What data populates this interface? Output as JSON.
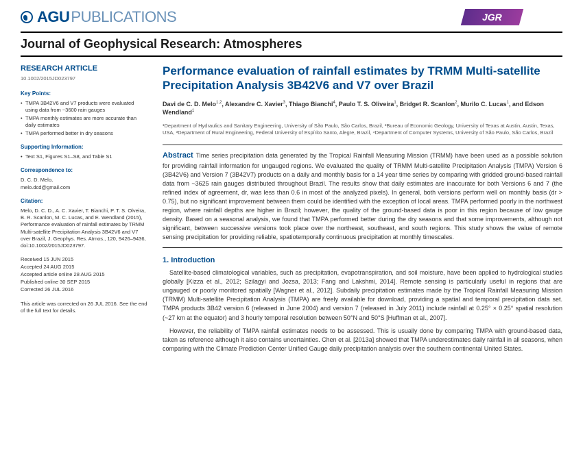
{
  "header": {
    "logo_bold": "AGU",
    "logo_pub": "PUBLICATIONS",
    "jgr_chip": "JGR",
    "journal_name": "Journal of Geophysical Research: Atmospheres"
  },
  "sidebar": {
    "article_type": "RESEARCH ARTICLE",
    "doi": "10.1002/2015JD023797",
    "keypoints_heading": "Key Points:",
    "keypoints": [
      "TMPA 3B42V6 and V7 products were evaluated using data from ~3600 rain gauges",
      "TMPA monthly estimates are more accurate than daily estimates",
      "TMPA performed better in dry seasons"
    ],
    "support_heading": "Supporting Information:",
    "support_items": [
      "Text S1, Figures S1–S8, and Table S1"
    ],
    "corr_heading": "Correspondence to:",
    "corr_name": "D. C. D. Melo,",
    "corr_email": "melo.dcd@gmail.com",
    "cite_heading": "Citation:",
    "cite_text": "Melo, D. C. D., A. C. Xavier, T. Bianchi, P. T. S. Olveira, B. R. Scanlon, M. C. Lucas, and E. Wendland (2015), Performance evaluation of rainfall estimates by TRMM Multi-satellite Precipitation Analysis 3B42V6 and V7 over Brazil, J. Geophys. Res. Atmos., 120, 9426–9436, doi:10.1002/2015JD023797.",
    "dates": [
      "Received 15 JUN 2015",
      "Accepted 24 AUG 2015",
      "Accepted article online 28 AUG 2015",
      "Published online 30 SEP 2015",
      "Corrected 26 JUL 2016"
    ],
    "correction": "This article was corrected on 26 JUL 2016. See the end of the full text for details."
  },
  "main": {
    "title": "Performance evaluation of rainfall estimates by TRMM Multi-satellite Precipitation Analysis 3B42V6 and V7 over Brazil",
    "authors_html": "Davi de C. D. Melo<sup>1,2</sup>, Alexandre C. Xavier<sup>3</sup>, Thiago Bianchi<sup>4</sup>, Paulo T. S. Oliveira<sup>1</sup>, Bridget R. Scanlon<sup>2</sup>, Murilo C. Lucas<sup>1</sup>, and Edson Wendland<sup>1</sup>",
    "affiliations": "¹Department of Hydraulics and Sanitary Engineering, University of São Paulo, São Carlos, Brazil, ²Bureau of Economic Geology, University of Texas at Austin, Austin, Texas, USA, ³Department of Rural Engineering, Federal University of Espírito Santo, Alegre, Brazil, ⁴Department of Computer Systems, University of São Paulo, São Carlos, Brazil",
    "abstract_label": "Abstract",
    "abstract": "Time series precipitation data generated by the Tropical Rainfall Measuring Mission (TRMM) have been used as a possible solution for providing rainfall information for ungauged regions. We evaluated the quality of TRMM Multi-satellite Precipitation Analysis (TMPA) Version 6 (3B42V6) and Version 7 (3B42V7) products on a daily and monthly basis for a 14 year time series by comparing with gridded ground-based rainfall data from ~3625 rain gauges distributed throughout Brazil. The results show that daily estimates are inaccurate for both Versions 6 and 7 (the refined index of agreement, dr, was less than 0.6 in most of the analyzed pixels). In general, both versions perform well on monthly basis (dr > 0.75), but no significant improvement between them could be identified with the exception of local areas. TMPA performed poorly in the northwest region, where rainfall depths are higher in Brazil; however, the quality of the ground-based data is poor in this region because of low gauge density. Based on a seasonal analysis, we found that TMPA performed better during the dry seasons and that some improvements, although not significant, between successive versions took place over the northeast, southeast, and south regions. This study shows the value of remote sensing precipitation for providing reliable, spatiotemporally continuous precipitation at monthly timescales.",
    "intro_heading": "1. Introduction",
    "intro_p1": "Satellite-based climatological variables, such as precipitation, evapotranspiration, and soil moisture, have been applied to hydrological studies globally [Kizza et al., 2012; Szilagyi and Jozsa, 2013; Fang and Lakshmi, 2014]. Remote sensing is particularly useful in regions that are ungauged or poorly monitored spatially [Wagner et al., 2012]. Subdaily precipitation estimates made by the Tropical Rainfall Measuring Mission (TRMM) Multi-satellite Precipitation Analysis (TMPA) are freely available for download, providing a spatial and temporal precipitation data set. TMPA products 3B42 version 6 (released in June 2004) and version 7 (released in July 2011) include rainfall at 0.25° × 0.25° spatial resolution (~27 km at the equator) and 3 hourly temporal resolution between 50°N and 50°S [Huffman et al., 2007].",
    "intro_p2": "However, the reliability of TMPA rainfall estimates needs to be assessed. This is usually done by comparing TMPA with ground-based data, taken as reference although it also contains uncertainties. Chen et al. [2013a] showed that TMPA underestimates daily rainfall in all seasons, when comparing with the Climate Prediction Center Unified Gauge daily precipitation analysis over the southern continental United States."
  }
}
